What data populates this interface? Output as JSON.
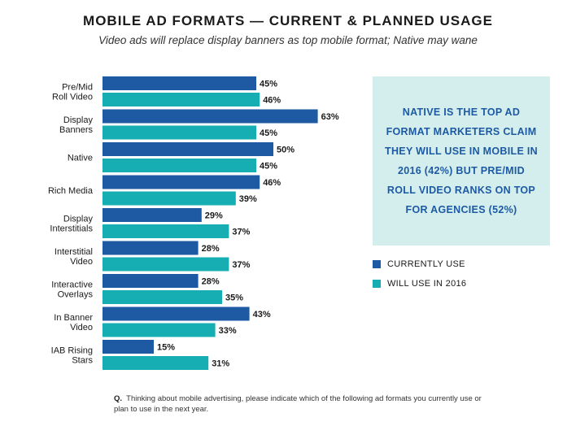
{
  "title": "MOBILE AD FORMATS — CURRENT & PLANNED USAGE",
  "subtitle": "Video ads will replace display banners as top mobile format; Native may wane",
  "colors": {
    "current": "#1d5aa3",
    "planned": "#16adb3",
    "callout_bg": "#d4eeee",
    "callout_text": "#1d5aa3"
  },
  "chart_data": {
    "type": "bar",
    "orientation": "horizontal",
    "categories": [
      [
        "Pre/Mid",
        "Roll Video"
      ],
      [
        "Display",
        "Banners"
      ],
      [
        "Native"
      ],
      [
        "Rich Media"
      ],
      [
        "Display",
        "Interstitials"
      ],
      [
        "Interstitial",
        "Video"
      ],
      [
        "Interactive",
        "Overlays"
      ],
      [
        "In Banner",
        "Video"
      ],
      [
        "IAB Rising",
        "Stars"
      ]
    ],
    "series": [
      {
        "name": "CURRENTLY USE",
        "values": [
          45,
          63,
          50,
          46,
          29,
          28,
          28,
          43,
          15
        ]
      },
      {
        "name": "WILL USE IN 2016",
        "values": [
          46,
          45,
          45,
          39,
          37,
          37,
          35,
          33,
          31
        ]
      }
    ],
    "value_suffix": "%",
    "xlim": [
      0,
      100
    ],
    "grid": false,
    "legend_position": "right"
  },
  "callout": {
    "text": "NATIVE IS THE TOP AD FORMAT MARKETERS CLAIM THEY WILL USE IN MOBILE IN 2016 (42%) BUT PRE/MID ROLL VIDEO RANKS ON TOP FOR AGENCIES (52%)"
  },
  "legend": {
    "current_label": "CURRENTLY USE",
    "planned_label": "WILL USE IN 2016"
  },
  "footnote": {
    "prefix": "Q.",
    "text": "Thinking about mobile advertising, please indicate which of the following ad formats you currently use or plan to use in the next year."
  }
}
